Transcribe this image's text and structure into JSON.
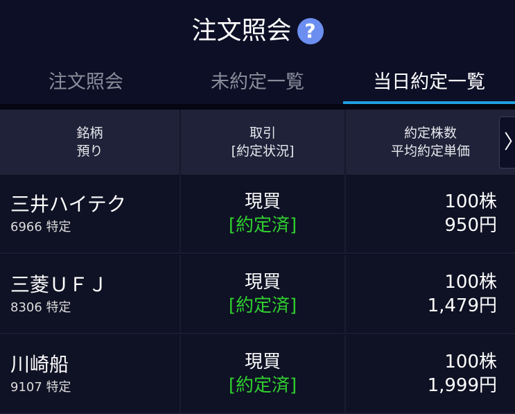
{
  "header": {
    "title": "注文照会",
    "help_icon": "question-circle-icon",
    "help_color": "#6b8ef0"
  },
  "tabs": [
    {
      "label": "注文照会"
    },
    {
      "label": "未約定一覧"
    },
    {
      "label": "当日約定一覧",
      "active": true
    }
  ],
  "table": {
    "headers": [
      [
        "銘柄",
        "預り"
      ],
      [
        "取引",
        "[約定状況]"
      ],
      [
        "約定株数",
        "平均約定単価"
      ]
    ],
    "rows": [
      {
        "name": "三井ハイテク",
        "code": "6966 特定",
        "trade": "現買",
        "status": "[約定済]",
        "shares": "100株",
        "price": "950円"
      },
      {
        "name": "三菱ＵＦＪ",
        "code": "8306 特定",
        "trade": "現買",
        "status": "[約定済]",
        "shares": "100株",
        "price": "1,479円"
      },
      {
        "name": "川崎船",
        "code": "9107 特定",
        "trade": "現買",
        "status": "[約定済]",
        "shares": "100株",
        "price": "1,999円"
      }
    ]
  },
  "colors": {
    "accent": "#1fa0e0",
    "status_green": "#2fd02f"
  }
}
